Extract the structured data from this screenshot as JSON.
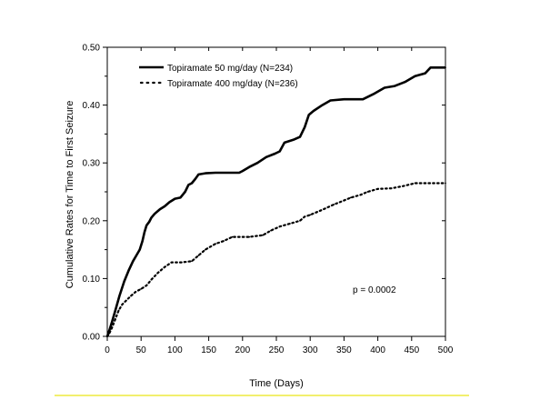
{
  "chart_data": {
    "type": "line",
    "title": "",
    "xlabel": "Time (Days)",
    "ylabel": "Cumulative Rates for Time to First Seizure",
    "xlim": [
      0,
      500
    ],
    "ylim": [
      0,
      0.5
    ],
    "x_ticks": [
      "0",
      "50",
      "100",
      "150",
      "200",
      "250",
      "300",
      "350",
      "400",
      "450",
      "500"
    ],
    "y_ticks": [
      "0.00",
      "0.10",
      "0.20",
      "0.30",
      "0.40",
      "0.50"
    ],
    "grid": false,
    "legend_position": "top-left",
    "annotation": "p = 0.0002",
    "series": [
      {
        "name": "Topiramate 50 mg/day (N=234)",
        "style": "solid",
        "color": "#000000",
        "points": [
          [
            0,
            0
          ],
          [
            3,
            0.01
          ],
          [
            7,
            0.025
          ],
          [
            12,
            0.045
          ],
          [
            18,
            0.07
          ],
          [
            25,
            0.095
          ],
          [
            32,
            0.115
          ],
          [
            38,
            0.13
          ],
          [
            43,
            0.14
          ],
          [
            48,
            0.15
          ],
          [
            52,
            0.165
          ],
          [
            55,
            0.18
          ],
          [
            58,
            0.192
          ],
          [
            62,
            0.198
          ],
          [
            65,
            0.205
          ],
          [
            70,
            0.212
          ],
          [
            78,
            0.22
          ],
          [
            85,
            0.225
          ],
          [
            92,
            0.232
          ],
          [
            100,
            0.238
          ],
          [
            108,
            0.24
          ],
          [
            115,
            0.25
          ],
          [
            120,
            0.262
          ],
          [
            125,
            0.265
          ],
          [
            130,
            0.272
          ],
          [
            135,
            0.28
          ],
          [
            145,
            0.282
          ],
          [
            160,
            0.283
          ],
          [
            180,
            0.283
          ],
          [
            195,
            0.283
          ],
          [
            200,
            0.286
          ],
          [
            210,
            0.293
          ],
          [
            222,
            0.3
          ],
          [
            235,
            0.31
          ],
          [
            248,
            0.316
          ],
          [
            255,
            0.32
          ],
          [
            262,
            0.335
          ],
          [
            275,
            0.34
          ],
          [
            285,
            0.345
          ],
          [
            292,
            0.362
          ],
          [
            298,
            0.383
          ],
          [
            305,
            0.39
          ],
          [
            318,
            0.4
          ],
          [
            330,
            0.408
          ],
          [
            350,
            0.41
          ],
          [
            378,
            0.41
          ],
          [
            395,
            0.42
          ],
          [
            410,
            0.43
          ],
          [
            425,
            0.433
          ],
          [
            440,
            0.44
          ],
          [
            455,
            0.45
          ],
          [
            470,
            0.455
          ],
          [
            478,
            0.465
          ],
          [
            500,
            0.465
          ]
        ]
      },
      {
        "name": "Topiramate 400 mg/day (N=236)",
        "style": "dotted",
        "color": "#000000",
        "points": [
          [
            0,
            0
          ],
          [
            3,
            0.005
          ],
          [
            7,
            0.015
          ],
          [
            12,
            0.03
          ],
          [
            17,
            0.045
          ],
          [
            22,
            0.055
          ],
          [
            28,
            0.062
          ],
          [
            35,
            0.07
          ],
          [
            42,
            0.077
          ],
          [
            50,
            0.082
          ],
          [
            58,
            0.088
          ],
          [
            65,
            0.098
          ],
          [
            75,
            0.11
          ],
          [
            85,
            0.12
          ],
          [
            95,
            0.128
          ],
          [
            110,
            0.128
          ],
          [
            125,
            0.13
          ],
          [
            135,
            0.14
          ],
          [
            145,
            0.15
          ],
          [
            160,
            0.16
          ],
          [
            172,
            0.165
          ],
          [
            185,
            0.172
          ],
          [
            210,
            0.172
          ],
          [
            230,
            0.175
          ],
          [
            242,
            0.183
          ],
          [
            255,
            0.19
          ],
          [
            270,
            0.195
          ],
          [
            285,
            0.2
          ],
          [
            292,
            0.207
          ],
          [
            300,
            0.21
          ],
          [
            310,
            0.215
          ],
          [
            320,
            0.22
          ],
          [
            335,
            0.228
          ],
          [
            350,
            0.235
          ],
          [
            360,
            0.24
          ],
          [
            375,
            0.245
          ],
          [
            385,
            0.25
          ],
          [
            400,
            0.255
          ],
          [
            420,
            0.256
          ],
          [
            438,
            0.26
          ],
          [
            455,
            0.265
          ],
          [
            500,
            0.265
          ]
        ]
      }
    ]
  }
}
